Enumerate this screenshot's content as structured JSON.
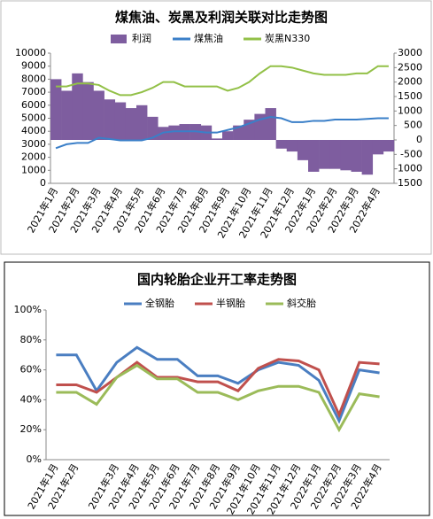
{
  "chart_data": [
    {
      "type": "combo",
      "title": "煤焦油、炭黑及利润关联对比走势图",
      "categories": [
        "2021年1月",
        null,
        "2021年2月",
        null,
        "2021年3月",
        null,
        "2021年4月",
        null,
        "2021年5月",
        null,
        "2021年6月",
        null,
        "2021年7月",
        null,
        "2021年8月",
        null,
        "2021年9月",
        null,
        "2021年10月",
        null,
        "2021年11月",
        null,
        "2021年12月",
        null,
        "2022年1月",
        null,
        "2022年2月",
        null,
        "2022年3月",
        null,
        "2022年4月",
        null
      ],
      "ylim": [
        0,
        10000
      ],
      "yticks": [
        0,
        1000,
        2000,
        3000,
        4000,
        5000,
        6000,
        7000,
        8000,
        9000,
        10000
      ],
      "y2lim": [
        -1500,
        3000
      ],
      "y2ticks": [
        -1500,
        -1000,
        -500,
        0,
        500,
        1000,
        1500,
        2000,
        2500,
        3000
      ],
      "series": [
        {
          "name": "利润",
          "type": "bar",
          "axis": "y2",
          "color": "#7e5d9f",
          "values": [
            2100,
            1700,
            2300,
            2000,
            1700,
            1400,
            1300,
            1100,
            1200,
            800,
            450,
            500,
            550,
            550,
            500,
            50,
            300,
            500,
            700,
            900,
            1100,
            -300,
            -400,
            -700,
            -1100,
            -1000,
            -1000,
            -1050,
            -1100,
            -1200,
            -500,
            -400
          ]
        },
        {
          "name": "煤焦油",
          "type": "line",
          "color": "#3a7fc8",
          "values": [
            2700,
            3000,
            3100,
            3100,
            3500,
            3400,
            3300,
            3300,
            3300,
            3500,
            3900,
            4000,
            4000,
            4000,
            3900,
            3900,
            4100,
            4300,
            4600,
            4900,
            5100,
            5000,
            4700,
            4700,
            4800,
            4800,
            4900,
            4900,
            4900,
            4950,
            5000,
            5000
          ]
        },
        {
          "name": "炭黑N330",
          "type": "line",
          "axis": "y2",
          "color": "#92c047",
          "values": [
            1850,
            1850,
            1950,
            1950,
            1900,
            1700,
            1550,
            1550,
            1650,
            1800,
            2000,
            2000,
            1850,
            1850,
            1850,
            1850,
            1700,
            1800,
            2000,
            2300,
            2550,
            2550,
            2500,
            2400,
            2300,
            2250,
            2250,
            2250,
            2300,
            2300,
            2550,
            2550
          ]
        }
      ]
    },
    {
      "type": "line",
      "title": "国内轮胎企业开工率走势图",
      "categories": [
        "2021年1月",
        "2021年2月",
        null,
        "2021年3月",
        "2021年4月",
        "2021年5月",
        "2021年6月",
        "2021年7月",
        "2021年8月",
        "2021年9月",
        "2021年10月",
        "2021年11月",
        "2021年12月",
        "2022年1月",
        "2022年2月",
        "2022年3月",
        "2022年4月"
      ],
      "ylim": [
        0,
        100
      ],
      "yticks": [
        {
          "value": 0,
          "label": "0%"
        },
        {
          "value": 20,
          "label": "20%"
        },
        {
          "value": 40,
          "label": "40%"
        },
        {
          "value": 60,
          "label": "60%"
        },
        {
          "value": 80,
          "label": "80%"
        },
        {
          "value": 100,
          "label": "100%"
        }
      ],
      "series": [
        {
          "name": "全钢胎",
          "color": "#4a7ec1",
          "values": [
            70,
            70,
            46,
            65,
            75,
            67,
            67,
            56,
            56,
            51,
            60,
            65,
            63,
            53,
            26,
            60,
            58
          ]
        },
        {
          "name": "半钢胎",
          "color": "#c0504d",
          "values": [
            50,
            50,
            45,
            55,
            65,
            55,
            55,
            52,
            52,
            46,
            61,
            67,
            66,
            60,
            30,
            65,
            64
          ]
        },
        {
          "name": "斜交胎",
          "color": "#9bbb59",
          "values": [
            45,
            45,
            37,
            55,
            63,
            54,
            54,
            45,
            45,
            40,
            46,
            49,
            49,
            45,
            20,
            44,
            42
          ]
        }
      ]
    }
  ]
}
